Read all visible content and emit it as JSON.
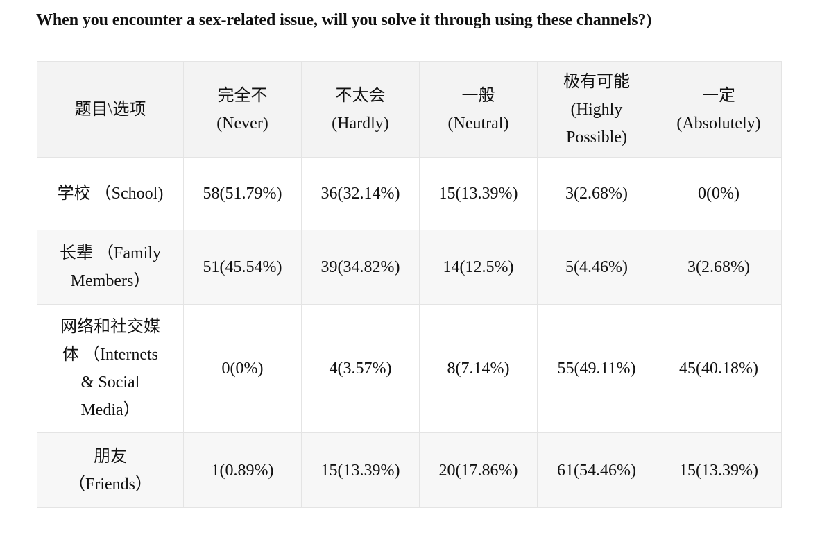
{
  "title": "When you encounter a sex-related issue, will you solve it through using these channels?)",
  "table": {
    "header": {
      "corner": "题目\\选项",
      "columns": [
        [
          "完全不",
          "(Never)"
        ],
        [
          "不太会",
          "(Hardly)"
        ],
        [
          "一般",
          "(Neutral)"
        ],
        [
          "极有可能",
          "(Highly",
          "Possible)"
        ],
        [
          "一定",
          "(Absolutely)"
        ]
      ]
    },
    "rows": [
      {
        "label": [
          "学校 （School)"
        ],
        "values": [
          "58(51.79%)",
          "36(32.14%)",
          "15(13.39%)",
          "3(2.68%)",
          "0(0%)"
        ]
      },
      {
        "label": [
          "长辈 （Family",
          "Members）"
        ],
        "values": [
          "51(45.54%)",
          "39(34.82%)",
          "14(12.5%)",
          "5(4.46%)",
          "3(2.68%)"
        ]
      },
      {
        "label": [
          "网络和社交媒",
          "体 （Internets",
          "& Social",
          "Media）"
        ],
        "values": [
          "0(0%)",
          "4(3.57%)",
          "8(7.14%)",
          "55(49.11%)",
          "45(40.18%)"
        ]
      },
      {
        "label": [
          "朋友",
          "（Friends）"
        ],
        "values": [
          "1(0.89%)",
          "15(13.39%)",
          "20(17.86%)",
          "61(54.46%)",
          "15(13.39%)"
        ]
      }
    ]
  }
}
